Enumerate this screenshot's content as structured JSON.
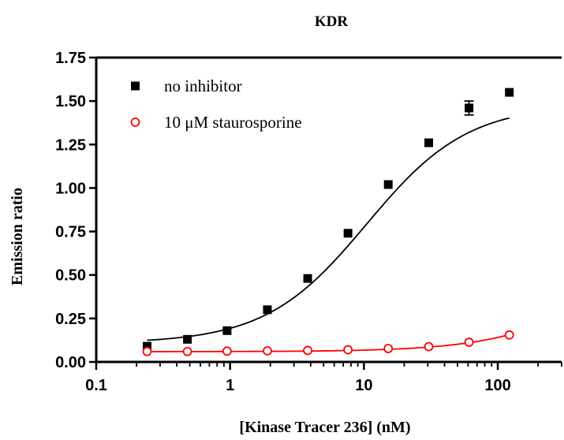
{
  "chart_data": {
    "type": "scatter",
    "title": "KDR",
    "xlabel": "[Kinase Tracer 236] (nM)",
    "ylabel": "Emission ratio",
    "x_scale": "log",
    "xlim": [
      0.1,
      300
    ],
    "ylim": [
      0,
      1.75
    ],
    "x_ticks": [
      0.1,
      1,
      10,
      100
    ],
    "x_tick_labels": [
      "0.1",
      "1",
      "10",
      "100"
    ],
    "y_ticks": [
      0,
      0.25,
      0.5,
      0.75,
      1.0,
      1.25,
      1.5,
      1.75
    ],
    "y_tick_labels": [
      "0.00",
      "0.25",
      "0.50",
      "0.75",
      "1.00",
      "1.25",
      "1.50",
      "1.75"
    ],
    "grid": false,
    "legend_position": "top-left",
    "series": [
      {
        "name": "no inhibitor",
        "marker": "filled-square",
        "color": "#000000",
        "x": [
          0.24,
          0.48,
          0.95,
          1.9,
          3.8,
          7.6,
          15.2,
          30.5,
          61,
          122
        ],
        "y": [
          0.09,
          0.13,
          0.18,
          0.3,
          0.48,
          0.74,
          1.02,
          1.26,
          1.46,
          1.55
        ],
        "error": [
          0,
          0,
          0,
          0,
          0,
          0,
          0,
          0,
          0.04,
          0
        ],
        "fit": {
          "bottom": 0.107,
          "top": 1.48,
          "ec50": 10.5,
          "hill": 1.15
        }
      },
      {
        "name": "10 μM staurosporine",
        "marker": "open-circle",
        "color": "#ff0000",
        "x": [
          0.24,
          0.48,
          0.95,
          1.9,
          3.8,
          7.6,
          15.2,
          30.5,
          61,
          122
        ],
        "y": [
          0.06,
          0.06,
          0.062,
          0.064,
          0.066,
          0.07,
          0.077,
          0.088,
          0.113,
          0.155
        ],
        "error": [
          0,
          0,
          0,
          0,
          0,
          0,
          0,
          0,
          0,
          0
        ],
        "fit": {
          "bottom": 0.059,
          "top": 1.0,
          "ec50": 1050,
          "hill": 1.0
        }
      }
    ]
  }
}
